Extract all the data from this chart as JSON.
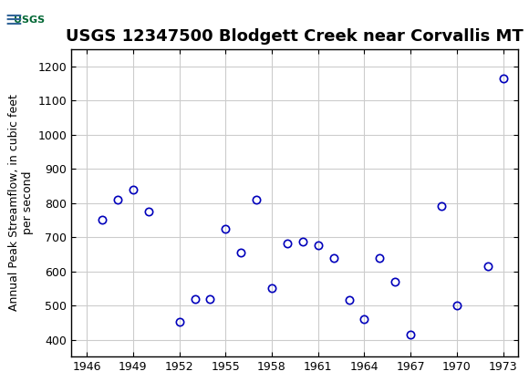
{
  "title": "USGS 12347500 Blodgett Creek near Corvallis MT",
  "ylabel": "Annual Peak Streamflow, in cubic feet\nper second",
  "xlabel": "",
  "years": [
    1947,
    1948,
    1949,
    1950,
    1952,
    1953,
    1954,
    1955,
    1956,
    1957,
    1958,
    1959,
    1960,
    1961,
    1962,
    1963,
    1964,
    1965,
    1966,
    1967,
    1969,
    1970,
    1972
  ],
  "flows": [
    750,
    810,
    838,
    775,
    452,
    520,
    520,
    725,
    655,
    810,
    550,
    682,
    688,
    675,
    640,
    515,
    460,
    640,
    570,
    415,
    790,
    500,
    615
  ],
  "extra_years": [
    1973
  ],
  "extra_flows": [
    1165
  ],
  "xlim": [
    1945,
    1974
  ],
  "ylim": [
    350,
    1250
  ],
  "yticks": [
    400,
    500,
    600,
    700,
    800,
    900,
    1000,
    1100,
    1200
  ],
  "xticks": [
    1946,
    1949,
    1952,
    1955,
    1958,
    1961,
    1964,
    1967,
    1970,
    1973
  ],
  "marker_color": "#0000bb",
  "marker_facecolor": "none",
  "marker_size": 6,
  "marker_style": "o",
  "grid_color": "#cccccc",
  "header_color": "#006633",
  "bg_color": "#ffffff",
  "title_fontsize": 13,
  "label_fontsize": 9,
  "tick_fontsize": 9
}
